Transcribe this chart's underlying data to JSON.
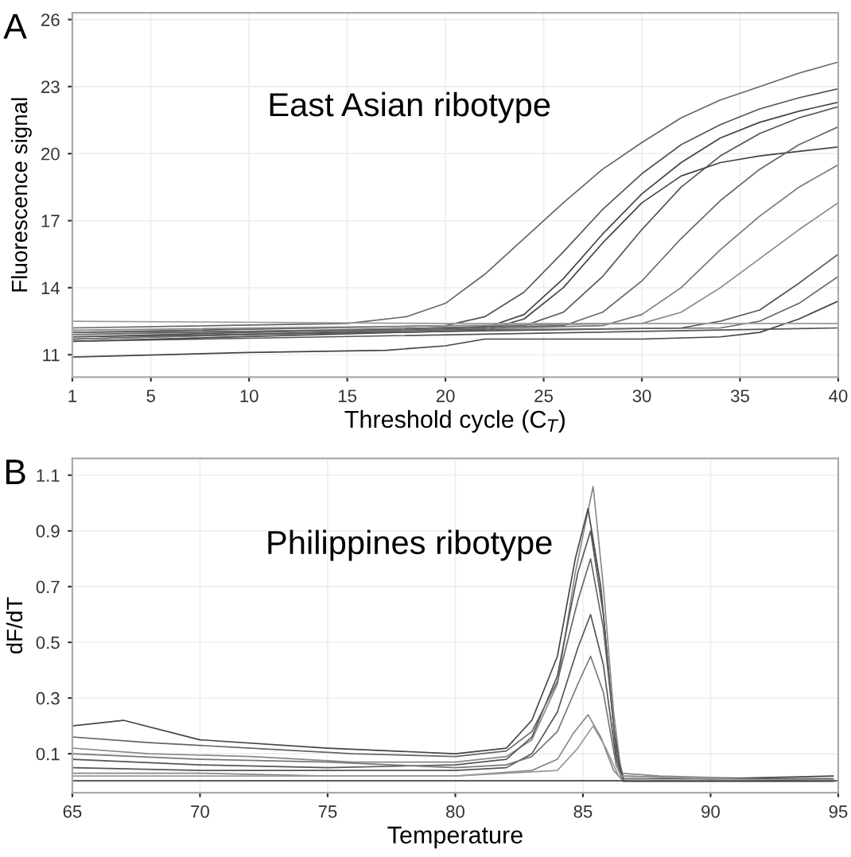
{
  "chart_data": [
    {
      "type": "line",
      "xlabel": "Threshold cycle (C$_{T}$)",
      "ylabel": "Fluorescence signal",
      "annotations": [
        "A",
        "East Asian ribotype"
      ],
      "xlim": [
        1,
        40
      ],
      "ylim": [
        10,
        26.3
      ],
      "xticks": [
        1,
        5,
        10,
        15,
        20,
        25,
        30,
        35,
        40
      ],
      "yticks": [
        11,
        14,
        17,
        20,
        23,
        26
      ],
      "grid": true,
      "legend": false,
      "marker": "none",
      "line_style": "solid",
      "series": [
        {
          "color": "#666666",
          "x": [
            1,
            15,
            18,
            20,
            22,
            24,
            26,
            28,
            30,
            32,
            34,
            36,
            38,
            40
          ],
          "values": [
            12.2,
            12.4,
            12.7,
            13.3,
            14.6,
            16.2,
            17.8,
            19.3,
            20.5,
            21.6,
            22.4,
            23.0,
            23.6,
            24.1
          ]
        },
        {
          "color": "#555555",
          "x": [
            1,
            20,
            22,
            24,
            26,
            28,
            30,
            32,
            34,
            36,
            38,
            40
          ],
          "values": [
            12.0,
            12.3,
            12.7,
            13.8,
            15.6,
            17.5,
            19.1,
            20.4,
            21.3,
            22.0,
            22.5,
            22.9
          ]
        },
        {
          "color": "#444444",
          "x": [
            1,
            22,
            24,
            26,
            28,
            30,
            32,
            34,
            36,
            38,
            40
          ],
          "values": [
            11.7,
            12.2,
            12.8,
            14.4,
            16.4,
            18.2,
            19.6,
            20.7,
            21.4,
            21.9,
            22.3
          ]
        },
        {
          "color": "#555555",
          "x": [
            1,
            24,
            26,
            28,
            30,
            32,
            34,
            36,
            38,
            40
          ],
          "values": [
            11.8,
            12.3,
            12.9,
            14.5,
            16.6,
            18.5,
            19.9,
            20.9,
            21.6,
            22.1
          ]
        },
        {
          "color": "#444444",
          "x": [
            1,
            22,
            24,
            26,
            28,
            30,
            32,
            34,
            36,
            38,
            40
          ],
          "values": [
            11.6,
            12.1,
            12.6,
            14.0,
            16.0,
            17.8,
            19.0,
            19.6,
            19.9,
            20.1,
            20.3
          ]
        },
        {
          "color": "#666666",
          "x": [
            1,
            26,
            28,
            30,
            32,
            34,
            36,
            38,
            40
          ],
          "values": [
            11.9,
            12.3,
            12.9,
            14.3,
            16.2,
            17.9,
            19.3,
            20.4,
            21.2
          ]
        },
        {
          "color": "#777777",
          "x": [
            1,
            28,
            30,
            32,
            34,
            36,
            38,
            40
          ],
          "values": [
            11.7,
            12.3,
            12.8,
            14.0,
            15.7,
            17.2,
            18.5,
            19.5
          ]
        },
        {
          "color": "#888888",
          "x": [
            1,
            30,
            32,
            34,
            36,
            38,
            40
          ],
          "values": [
            12.1,
            12.4,
            12.9,
            14.0,
            15.3,
            16.6,
            17.8
          ]
        },
        {
          "color": "#555555",
          "x": [
            1,
            32,
            34,
            36,
            38,
            40
          ],
          "values": [
            11.8,
            12.2,
            12.5,
            13.0,
            14.2,
            15.5
          ]
        },
        {
          "color": "#666666",
          "x": [
            1,
            34,
            36,
            38,
            40
          ],
          "values": [
            12.0,
            12.2,
            12.5,
            13.3,
            14.5
          ]
        },
        {
          "color": "#444444",
          "x": [
            1,
            10,
            17,
            20,
            22,
            30,
            34,
            36,
            38,
            40
          ],
          "values": [
            10.9,
            11.1,
            11.2,
            11.4,
            11.7,
            11.7,
            11.8,
            12.0,
            12.6,
            13.4
          ]
        },
        {
          "color": "#999999",
          "x": [
            1,
            20,
            30,
            40
          ],
          "values": [
            12.5,
            12.4,
            12.4,
            12.4
          ]
        },
        {
          "color": "#555555",
          "x": [
            1,
            40
          ],
          "values": [
            11.6,
            12.2
          ]
        }
      ]
    },
    {
      "type": "line",
      "xlabel": "Temperature",
      "ylabel": "dF/dT",
      "annotations": [
        "B",
        "Philippines ribotype"
      ],
      "xlim": [
        65,
        95
      ],
      "ylim": [
        -0.04,
        1.16
      ],
      "xticks": [
        65,
        70,
        75,
        80,
        85,
        90,
        95
      ],
      "yticks": [
        0.1,
        0.3,
        0.5,
        0.7,
        0.9,
        1.1
      ],
      "grid": true,
      "legend": false,
      "marker": "none",
      "line_style": "solid",
      "series": [
        {
          "color": "#888888",
          "x": [
            65,
            68,
            72,
            76,
            80,
            82,
            83,
            84,
            84.7,
            85.4,
            85.8,
            86.2,
            86.5,
            88,
            92,
            94.8
          ],
          "values": [
            0.12,
            0.1,
            0.09,
            0.07,
            0.07,
            0.09,
            0.15,
            0.35,
            0.75,
            1.06,
            0.7,
            0.25,
            0.03,
            0.02,
            0.01,
            0.01
          ]
        },
        {
          "color": "#444444",
          "x": [
            65,
            67,
            70,
            75,
            80,
            82,
            83,
            84,
            84.7,
            85.2,
            85.7,
            86.2,
            86.5,
            90,
            94.8
          ],
          "values": [
            0.2,
            0.22,
            0.15,
            0.12,
            0.1,
            0.12,
            0.22,
            0.45,
            0.8,
            0.98,
            0.7,
            0.2,
            0.02,
            0.01,
            0.02
          ]
        },
        {
          "color": "#555555",
          "x": [
            65,
            70,
            75,
            80,
            82,
            83,
            84,
            84.8,
            85.3,
            85.8,
            86.3,
            86.6,
            94.8
          ],
          "values": [
            0.08,
            0.06,
            0.05,
            0.06,
            0.08,
            0.16,
            0.38,
            0.75,
            0.9,
            0.6,
            0.1,
            0.0,
            0.0
          ]
        },
        {
          "color": "#666666",
          "x": [
            65,
            68,
            72,
            76,
            80,
            82,
            83,
            84,
            84.8,
            85.3,
            85.8,
            86.3,
            86.6,
            94.8
          ],
          "values": [
            0.16,
            0.14,
            0.12,
            0.1,
            0.09,
            0.11,
            0.18,
            0.36,
            0.65,
            0.8,
            0.55,
            0.12,
            0.01,
            0.01
          ]
        },
        {
          "color": "#555555",
          "x": [
            65,
            70,
            75,
            80,
            82,
            83,
            84,
            84.8,
            85.3,
            85.8,
            86.3,
            86.6,
            94.8
          ],
          "values": [
            0.05,
            0.04,
            0.04,
            0.04,
            0.05,
            0.1,
            0.25,
            0.48,
            0.6,
            0.42,
            0.08,
            0.0,
            0.0
          ]
        },
        {
          "color": "#777777",
          "x": [
            65,
            70,
            75,
            80,
            82,
            83,
            84,
            84.8,
            85.3,
            85.8,
            86.3,
            86.6,
            94.8
          ],
          "values": [
            0.1,
            0.08,
            0.07,
            0.05,
            0.06,
            0.09,
            0.18,
            0.35,
            0.45,
            0.32,
            0.06,
            0.0,
            0.0
          ]
        },
        {
          "color": "#888888",
          "x": [
            65,
            70,
            75,
            80,
            83,
            84,
            84.6,
            85.2,
            85.7,
            86.2,
            86.6,
            94.8
          ],
          "values": [
            0.03,
            0.03,
            0.02,
            0.02,
            0.04,
            0.08,
            0.17,
            0.24,
            0.16,
            0.04,
            0.0,
            0.0
          ]
        },
        {
          "color": "#999999",
          "x": [
            65,
            70,
            75,
            80,
            84,
            84.8,
            85.4,
            85.9,
            86.4,
            94.8
          ],
          "values": [
            0.02,
            0.02,
            0.02,
            0.02,
            0.04,
            0.12,
            0.2,
            0.12,
            0.02,
            0.0
          ]
        },
        {
          "color": "#444444",
          "x": [
            65,
            95
          ],
          "values": [
            0.003,
            0.003
          ]
        }
      ]
    }
  ]
}
